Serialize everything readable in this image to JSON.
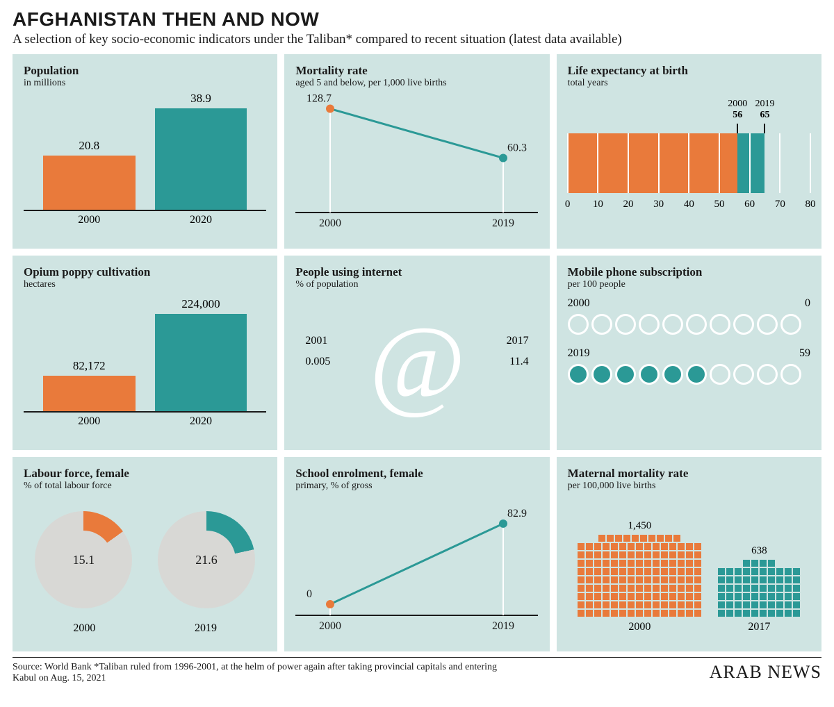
{
  "colors": {
    "orange": "#e97a3b",
    "teal": "#2b9996",
    "panel": "#cfe4e2",
    "ink": "#1a1a1a",
    "white": "#ffffff",
    "grey": "#d8d8d5"
  },
  "headline": "AFGHANISTAN THEN AND NOW",
  "dek": "A selection of key socio-economic indicators under the Taliban* compared to recent situation (latest data available)",
  "footer_source": "Source: World Bank   *Taliban ruled from 1996-2001, at the helm of power again after taking provincial capitals and entering Kabul on Aug. 15, 2021",
  "brand": "ARAB NEWS",
  "population": {
    "title": "Population",
    "sub": "in millions",
    "bars": [
      {
        "label": "2000",
        "value": 20.8,
        "value_label": "20.8",
        "color": "#e97a3b"
      },
      {
        "label": "2020",
        "value": 38.9,
        "value_label": "38.9",
        "color": "#2b9996"
      }
    ],
    "max": 40,
    "bar_width_pct": 38
  },
  "mortality": {
    "title": "Mortality rate",
    "sub": "aged 5 and below, per 1,000 live births",
    "points": [
      {
        "x_label": "2000",
        "value": 128.7,
        "value_label": "128.7",
        "color": "#e97a3b"
      },
      {
        "x_label": "2019",
        "value": 60.3,
        "value_label": "60.3",
        "color": "#2b9996"
      }
    ],
    "ymax": 135,
    "line_color": "#2b9996"
  },
  "life": {
    "title": "Life expectancy at birth",
    "sub": "total years",
    "scale": {
      "min": 0,
      "max": 80,
      "step": 10
    },
    "segments": [
      {
        "from": 0,
        "to": 56,
        "color": "#e97a3b",
        "head_year": "2000",
        "head_val": "56"
      },
      {
        "from": 56,
        "to": 65,
        "color": "#2b9996",
        "head_year": "2019",
        "head_val": "65"
      }
    ]
  },
  "opium": {
    "title": "Opium poppy cultivation",
    "sub": "hectares",
    "bars": [
      {
        "label": "2000",
        "value": 82172,
        "value_label": "82,172",
        "color": "#e97a3b"
      },
      {
        "label": "2020",
        "value": 224000,
        "value_label": "224,000",
        "color": "#2b9996"
      }
    ],
    "max": 240000,
    "bar_width_pct": 38
  },
  "internet": {
    "title": "People using internet",
    "sub": "% of population",
    "left_year": "2001",
    "left_val": "0.005",
    "right_year": "2017",
    "right_val": "11.4"
  },
  "mobile": {
    "title": "Mobile phone subscription",
    "sub": "per 100 people",
    "row_a": {
      "year": "2000",
      "value": "0",
      "filled": 0,
      "total": 10,
      "fill_color": "#2b9996"
    },
    "row_b": {
      "year": "2019",
      "value": "59",
      "filled": 6,
      "total": 10,
      "fill_color": "#2b9996"
    }
  },
  "labour": {
    "title": "Labour force, female",
    "sub": "% of total labour force",
    "donuts": [
      {
        "year": "2000",
        "value": 15.1,
        "value_label": "15.1",
        "color": "#e97a3b"
      },
      {
        "year": "2019",
        "value": 21.6,
        "value_label": "21.6",
        "color": "#2b9996"
      }
    ]
  },
  "enrolment": {
    "title": "School enrolment, female",
    "sub": "primary, % of gross",
    "points": [
      {
        "x_label": "2000",
        "value": 0,
        "value_label": "0",
        "color": "#e97a3b"
      },
      {
        "x_label": "2019",
        "value": 82.9,
        "value_label": "82.9",
        "color": "#2b9996"
      }
    ],
    "ymax": 100,
    "line_color": "#2b9996"
  },
  "maternal": {
    "title": "Maternal mortality rate",
    "sub": "per 100,000 live births",
    "blocks": [
      {
        "year": "2000",
        "value": 1450,
        "value_label": "1,450",
        "color": "#e97a3b",
        "cols": 15,
        "full_rows": 9,
        "extra": 10
      },
      {
        "year": "2017",
        "value": 638,
        "value_label": "638",
        "color": "#2b9996",
        "cols": 10,
        "full_rows": 6,
        "extra": 4
      }
    ]
  }
}
